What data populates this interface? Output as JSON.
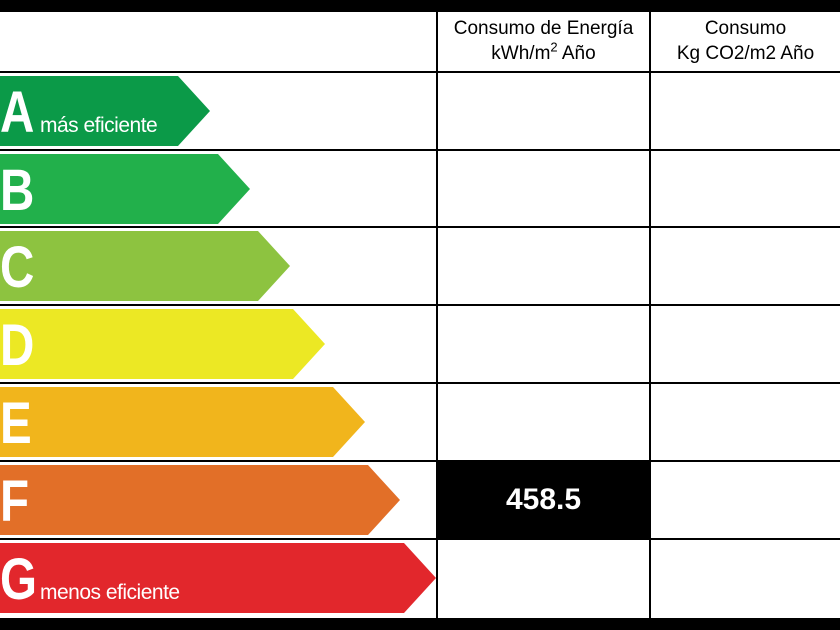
{
  "header": {
    "energy_line1": "Consumo de Energía",
    "energy_line2_prefix": "kWh/m",
    "energy_line2_sup": "2",
    "energy_line2_suffix": " Año",
    "co2_line1": "Consumo",
    "co2_line2": "Kg CO2/m2 Año"
  },
  "ratings": [
    {
      "letter": "A",
      "label": "más eficiente",
      "color": "#0b9a48"
    },
    {
      "letter": "B",
      "label": "",
      "color": "#22b04b"
    },
    {
      "letter": "C",
      "label": "",
      "color": "#8dc340"
    },
    {
      "letter": "D",
      "label": "",
      "color": "#ece824"
    },
    {
      "letter": "E",
      "label": "",
      "color": "#f1b51c"
    },
    {
      "letter": "F",
      "label": "",
      "color": "#e26f28"
    },
    {
      "letter": "G",
      "label": "menos eficiente",
      "color": "#e2272c"
    }
  ],
  "energy_value": {
    "rating": "F",
    "value": "458.5",
    "background": "#000000"
  }
}
